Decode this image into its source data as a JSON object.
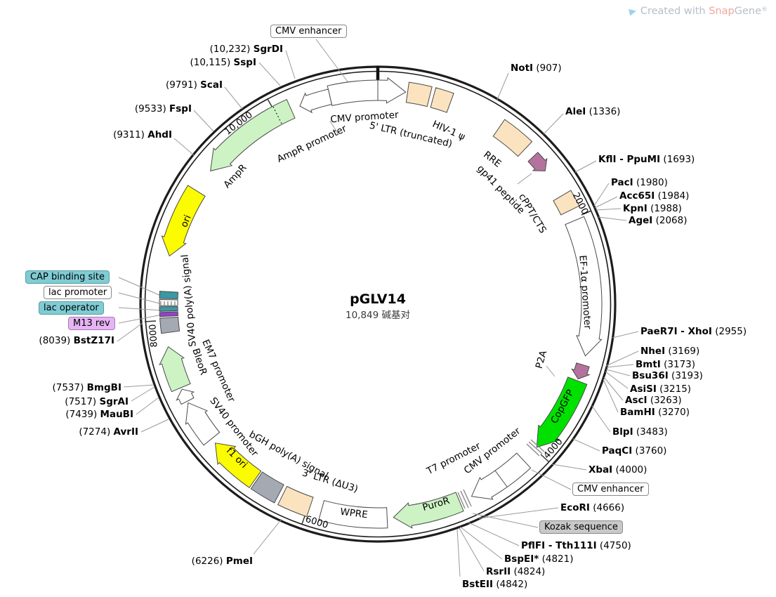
{
  "watermark": {
    "created_with": "Created with ",
    "brand_snap": "Snap",
    "brand_gene": "Gene",
    "reg": "®",
    "logo_glyph": "▶"
  },
  "plasmid": {
    "name": "pGLV14",
    "size_label": "10,849 碱基对"
  },
  "ticks": {
    "t2000": "2000",
    "t4000": "4000",
    "t6000": "6000",
    "t8000": "8000",
    "t10000": "10,000"
  },
  "features": {
    "cmv_promoter_top": "CMV promoter",
    "ltr5": "5' LTR (truncated)",
    "hiv1_psi": "HIV-1 ψ",
    "rre": "RRE",
    "gp41": "gp41 peptide",
    "cppt": "cPPT/CTS",
    "ef1a": "EF-1α promoter",
    "p2a": "P2A",
    "copgfp": "CopGFP",
    "cmv_promoter_2": "CMV promoter",
    "t7": "T7 promoter",
    "puror": "PuroR",
    "wpre": "WPRE",
    "ltr3": "3' LTR (ΔU3)",
    "bgh_polya": "bGH poly(A) signal",
    "f1_ori": "f1 ori",
    "sv40_promoter": "SV40 promoter",
    "em7": "EM7 promoter",
    "bleor": "BleoR",
    "sv40_polya": "SV40 poly(A) signal",
    "ori": "ori",
    "ampr": "AmpR",
    "ampr_promoter": "AmpR promoter"
  },
  "boxed_labels": {
    "cmv_enhancer_top": "CMV enhancer",
    "cmv_enhancer_bottom": "CMV enhancer",
    "kozak": "Kozak sequence",
    "cap_binding": "CAP binding site",
    "lac_promoter": "lac promoter",
    "lac_operator": "lac operator",
    "m13_rev": "M13 rev"
  },
  "sites": {
    "sgrdi": {
      "pos": "(10,232)",
      "name": "SgrDI"
    },
    "sspi": {
      "pos": "(10,115)",
      "name": "SspI"
    },
    "scai": {
      "pos": "(9791)",
      "name": "ScaI"
    },
    "fspi": {
      "pos": "(9533)",
      "name": "FspI"
    },
    "ahdi": {
      "pos": "(9311)",
      "name": "AhdI"
    },
    "bstz17i": {
      "pos": "(8039)",
      "name": "BstZ17I"
    },
    "bmgbi": {
      "pos": "(7537)",
      "name": "BmgBI"
    },
    "sgrai": {
      "pos": "(7517)",
      "name": "SgrAI"
    },
    "maubi": {
      "pos": "(7439)",
      "name": "MauBI"
    },
    "avrii": {
      "pos": "(7274)",
      "name": "AvrII"
    },
    "pmei": {
      "pos": "(6226)",
      "name": "PmeI"
    },
    "noti": {
      "name": "NotI",
      "pos": "(907)"
    },
    "alei": {
      "name": "AleI",
      "pos": "(1336)"
    },
    "kfli": {
      "name": "KflI - PpuMI",
      "pos": "(1693)"
    },
    "paci": {
      "name": "PacI",
      "pos": "(1980)"
    },
    "acc65i": {
      "name": "Acc65I",
      "pos": "(1984)"
    },
    "kpni": {
      "name": "KpnI",
      "pos": "(1988)"
    },
    "agei": {
      "name": "AgeI",
      "pos": "(2068)"
    },
    "paer7i": {
      "name": "PaeR7I - XhoI",
      "pos": "(2955)"
    },
    "nhei": {
      "name": "NheI",
      "pos": "(3169)"
    },
    "bmti": {
      "name": "BmtI",
      "pos": "(3173)"
    },
    "bsu36i": {
      "name": "Bsu36I",
      "pos": "(3193)"
    },
    "asisi": {
      "name": "AsiSI",
      "pos": "(3215)"
    },
    "asci": {
      "name": "AscI",
      "pos": "(3263)"
    },
    "bamhi": {
      "name": "BamHI",
      "pos": "(3270)"
    },
    "blpi": {
      "name": "BlpI",
      "pos": "(3483)"
    },
    "paqci": {
      "name": "PaqCI",
      "pos": "(3760)"
    },
    "xbai": {
      "name": "XbaI",
      "pos": "(4000)"
    },
    "ecori": {
      "name": "EcoRI",
      "pos": "(4666)"
    },
    "pflfi": {
      "name": "PflFI - Tth111I",
      "pos": "(4750)"
    },
    "bspei": {
      "name": "BspEI*",
      "pos": "(4821)"
    },
    "rsrii": {
      "name": "RsrII",
      "pos": "(4824)"
    },
    "bsteii": {
      "name": "BstEII",
      "pos": "(4842)"
    }
  },
  "colors": {
    "tan": "#fbe3c0",
    "light_green": "#cdf3c5",
    "bright_green": "#00e100",
    "yellow": "#fcfc00",
    "mauve": "#b4739e",
    "gray_feature": "#a5aab2",
    "white_feature": "#ffffff",
    "teal_box": "#3b98a5",
    "purple_box": "#9440cc",
    "teal_label_bg": "#7fccd4",
    "purple_label_bg": "#e6b4f4",
    "kozak_bg": "#c9c9c9",
    "rim": "#1c1c1c"
  }
}
